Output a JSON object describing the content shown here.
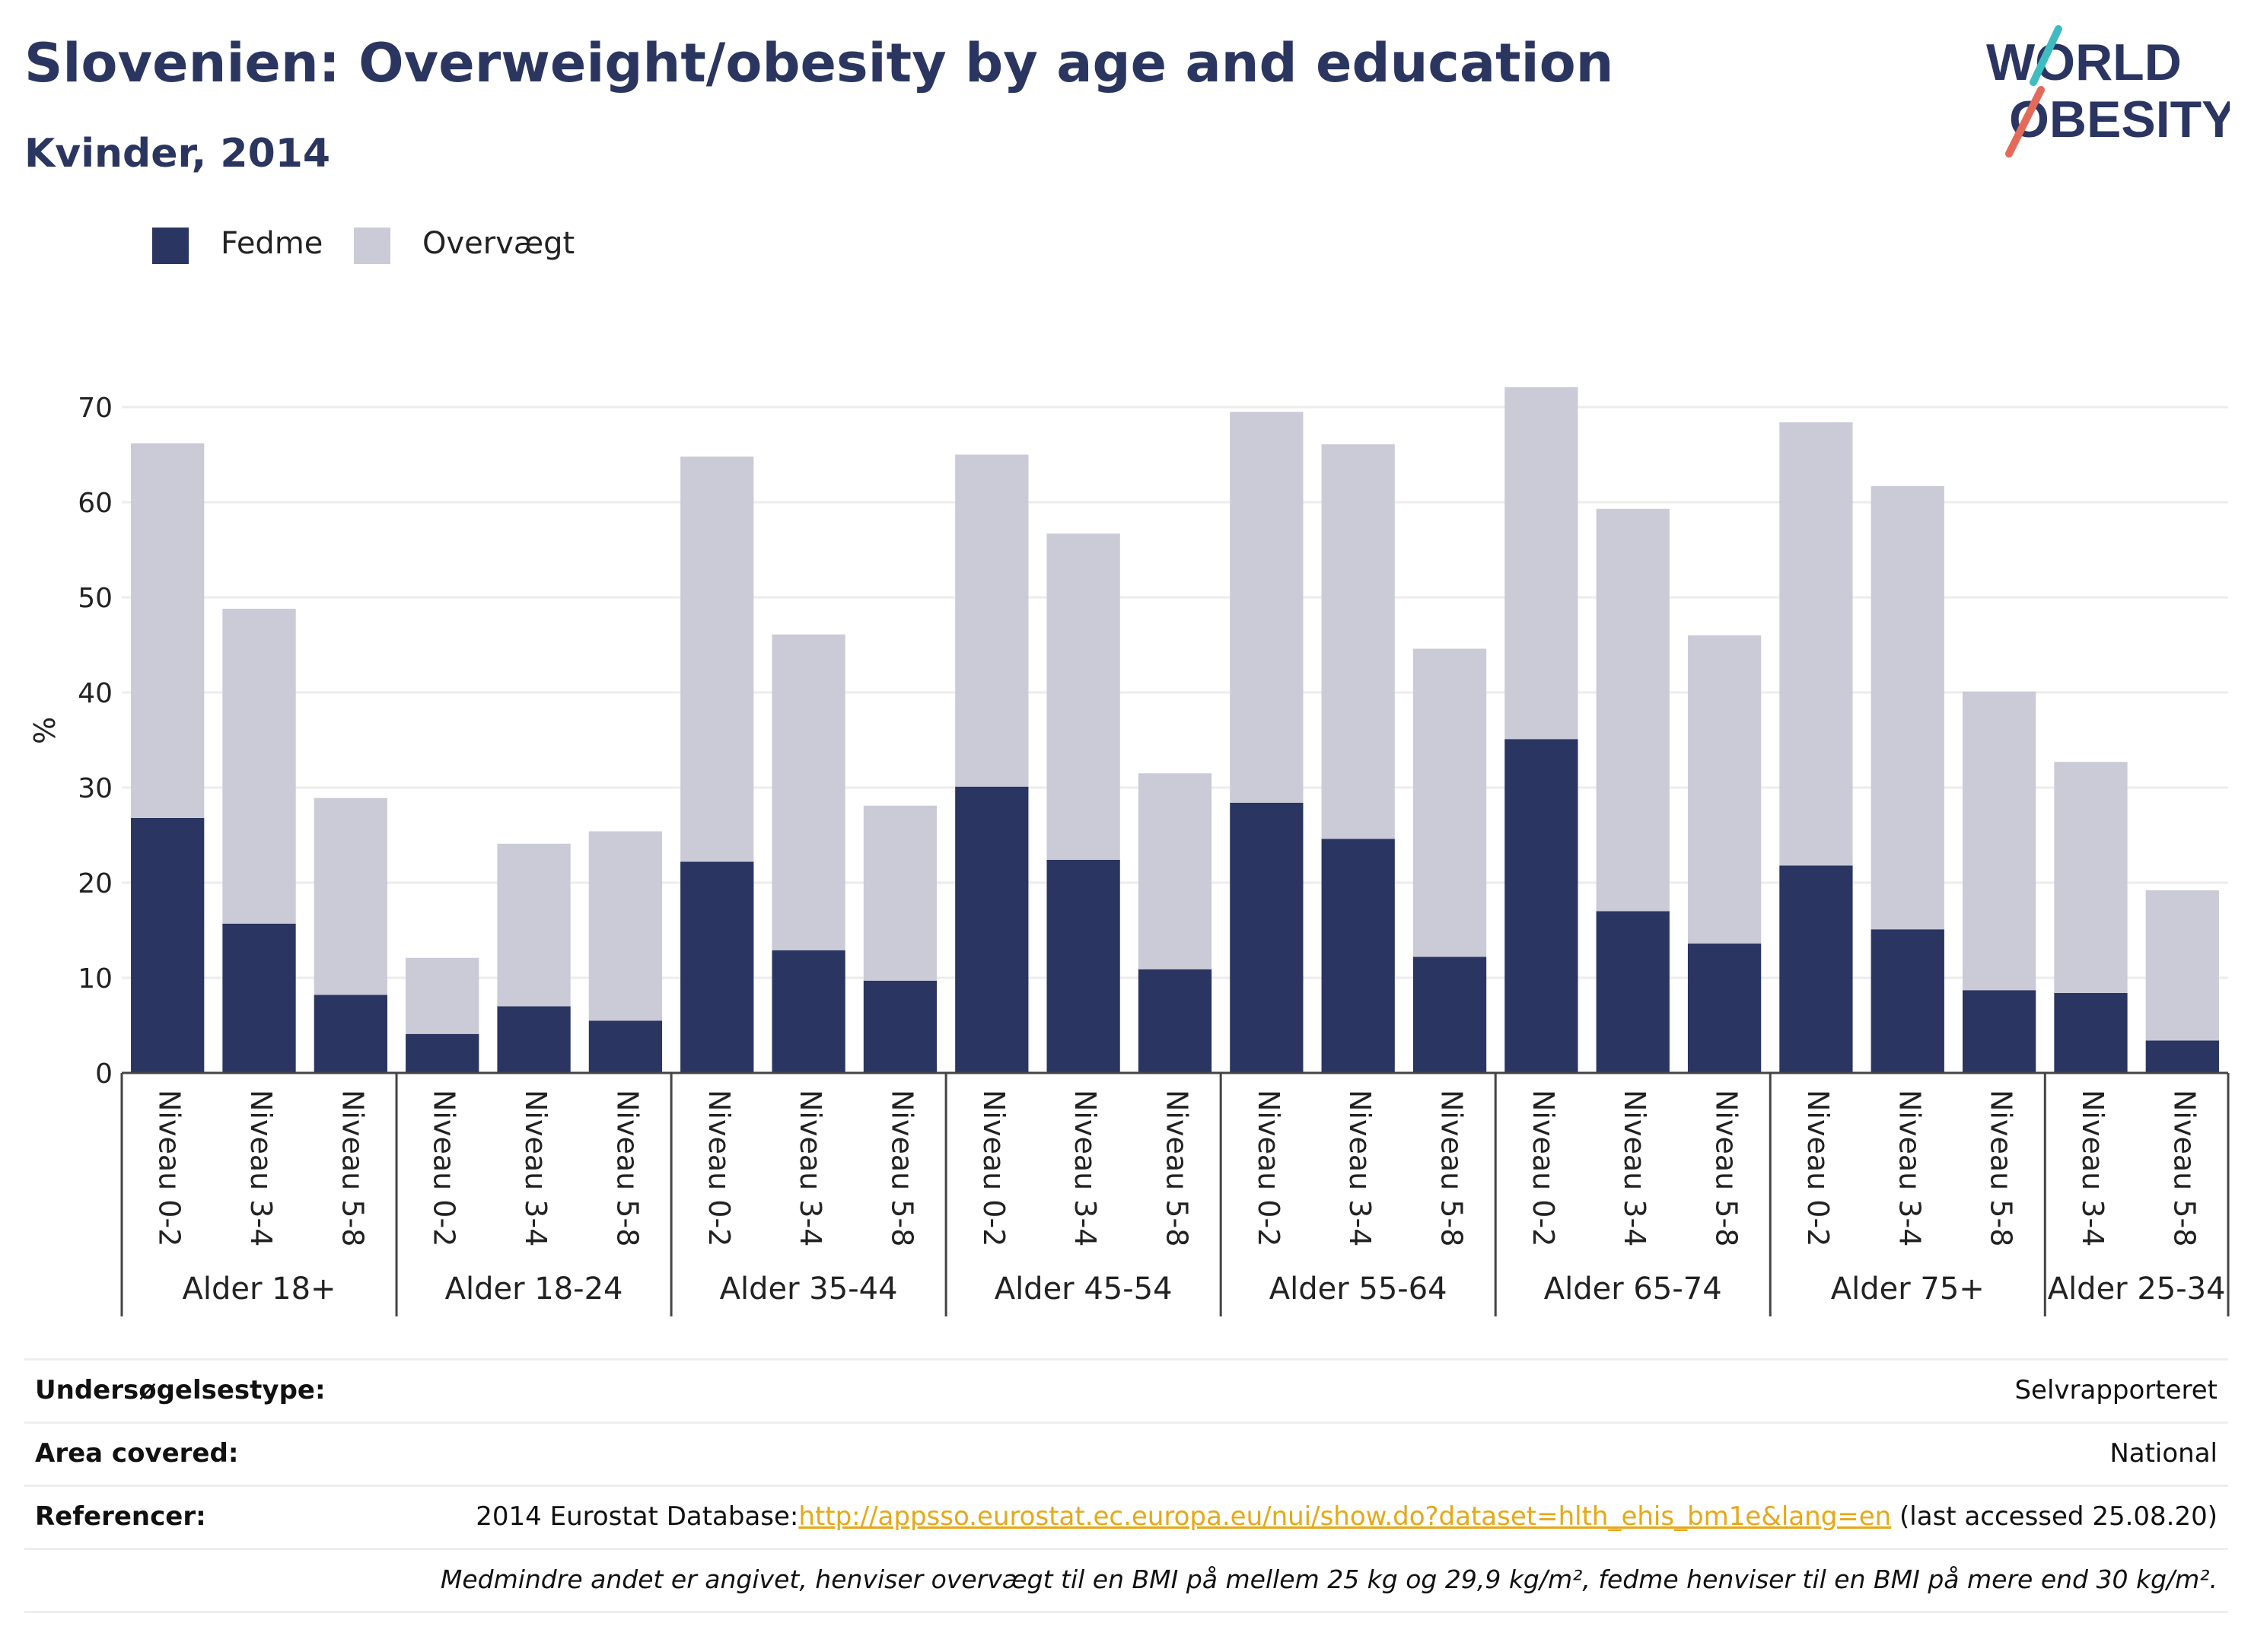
{
  "header": {
    "title": "Slovenien: Overweight/obesity by age and education",
    "subtitle": "Kvinder, 2014"
  },
  "logo": {
    "line1": "WORLD",
    "line2": "OBESITY"
  },
  "legend": [
    {
      "label": "Fedme",
      "color": "#2b3562"
    },
    {
      "label": "Overvægt",
      "color": "#cacbd7"
    }
  ],
  "chart_data": {
    "type": "bar",
    "stacked": true,
    "ylabel": "%",
    "ylim": [
      0,
      72
    ],
    "yticks": [
      0,
      10,
      20,
      30,
      40,
      50,
      60,
      70
    ],
    "grid": true,
    "legend_position": "top-left",
    "groups": [
      {
        "label": "Alder 18+",
        "categories": [
          "Niveau 0-2",
          "Niveau 3-4",
          "Niveau 5-8"
        ]
      },
      {
        "label": "Alder 18-24",
        "categories": [
          "Niveau 0-2",
          "Niveau 3-4",
          "Niveau 5-8"
        ]
      },
      {
        "label": "Alder 35-44",
        "categories": [
          "Niveau 0-2",
          "Niveau 3-4",
          "Niveau 5-8"
        ]
      },
      {
        "label": "Alder 45-54",
        "categories": [
          "Niveau 0-2",
          "Niveau 3-4",
          "Niveau 5-8"
        ]
      },
      {
        "label": "Alder 55-64",
        "categories": [
          "Niveau 0-2",
          "Niveau 3-4",
          "Niveau 5-8"
        ]
      },
      {
        "label": "Alder 65-74",
        "categories": [
          "Niveau 0-2",
          "Niveau 3-4",
          "Niveau 5-8"
        ]
      },
      {
        "label": "Alder 75+",
        "categories": [
          "Niveau 0-2",
          "Niveau 3-4",
          "Niveau 5-8"
        ]
      },
      {
        "label": "Alder 25-34",
        "categories": [
          "Niveau 3-4",
          "Niveau 5-8"
        ]
      }
    ],
    "series": [
      {
        "name": "Fedme",
        "color": "#2b3562",
        "values": [
          26.8,
          15.7,
          8.2,
          4.1,
          7.0,
          5.5,
          22.2,
          12.9,
          9.7,
          30.1,
          22.4,
          10.9,
          28.4,
          24.6,
          12.2,
          35.1,
          17.0,
          13.6,
          21.8,
          15.1,
          8.7,
          8.4,
          3.4
        ]
      },
      {
        "name": "Overvægt",
        "color": "#cacbd7",
        "values": [
          39.4,
          33.1,
          20.7,
          8.0,
          17.1,
          19.9,
          42.6,
          33.2,
          18.4,
          34.9,
          34.3,
          20.6,
          41.1,
          41.5,
          32.4,
          37.0,
          42.3,
          32.4,
          46.6,
          46.6,
          31.4,
          24.3,
          15.8
        ]
      }
    ]
  },
  "meta": {
    "survey_type_label": "Undersøgelsestype:",
    "survey_type_value": "Selvrapporteret",
    "area_label": "Area covered:",
    "area_value": "National",
    "references_label": "Referencer:",
    "references_prefix": "2014 Eurostat Database:",
    "references_link": "http://appsso.eurostat.ec.europa.eu/nui/show.do?dataset=hlth_ehis_bm1e&lang=en",
    "references_suffix": " (last accessed 25.08.20)",
    "note": "Medmindre andet er angivet, henviser overvægt til en BMI på mellem 25 kg og 29,9 kg/m², fedme henviser til en BMI på mere end 30 kg/m²."
  }
}
